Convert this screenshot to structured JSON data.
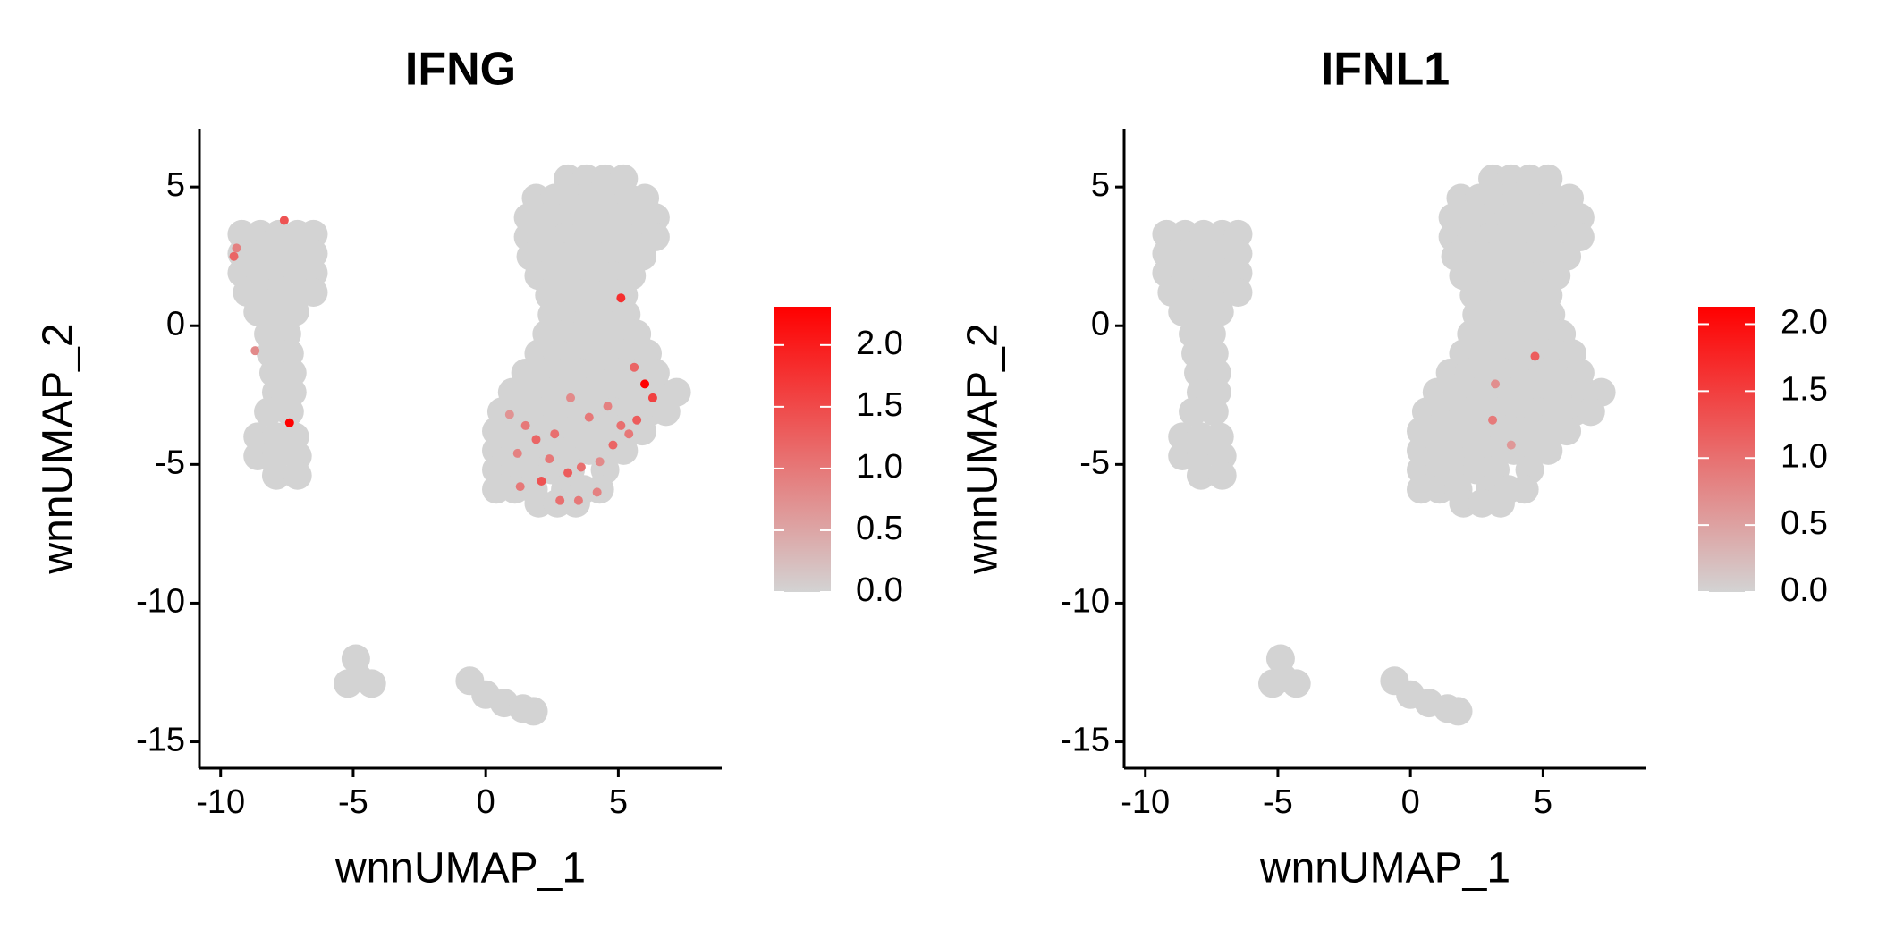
{
  "chart_data": [
    {
      "type": "scatter",
      "title": "IFNG",
      "x_label": "wnnUMAP_1",
      "y_label": "wnnUMAP_2",
      "xlim": [
        -10.8,
        8.9
      ],
      "ylim": [
        -15.95,
        7.1
      ],
      "xticks": [
        -10,
        -5,
        0,
        5
      ],
      "yticks": [
        -15,
        -10,
        -5,
        0,
        5
      ],
      "low_color": "#d3d3d3",
      "high_color": "#ff0000",
      "clim": [
        0,
        2.31
      ],
      "cticks": [
        {
          "value": 0,
          "label": "0.0"
        },
        {
          "value": 0.5,
          "label": "0.5"
        },
        {
          "value": 1,
          "label": "1.0"
        },
        {
          "value": 1.5,
          "label": "1.5"
        },
        {
          "value": 2,
          "label": "2.0"
        }
      ],
      "x": [
        -9.2,
        -8.5,
        -7.8,
        -7.1,
        -6.5,
        -9.2,
        -8.5,
        -7.8,
        -7.1,
        -6.5,
        -9.2,
        -8.5,
        -7.8,
        -7.1,
        -6.5,
        -9.0,
        -8.4,
        -7.7,
        -7.0,
        -6.5,
        -8.6,
        -7.9,
        -7.2,
        -8.2,
        -7.5,
        -8.1,
        -7.4,
        -8.0,
        -7.3,
        -7.9,
        -7.3,
        -8.2,
        -7.4,
        -8.6,
        -7.9,
        -7.2,
        -8.6,
        -7.9,
        -7.1,
        -7.9,
        -7.1,
        3.1,
        3.8,
        4.5,
        5.2,
        1.9,
        2.6,
        3.3,
        4.0,
        4.7,
        5.4,
        6.0,
        1.6,
        2.3,
        3.0,
        3.7,
        4.4,
        5.1,
        5.8,
        6.4,
        1.6,
        2.3,
        3.0,
        3.7,
        4.4,
        5.1,
        5.8,
        6.4,
        1.7,
        2.4,
        3.1,
        3.8,
        4.5,
        5.2,
        5.9,
        2.0,
        2.7,
        3.4,
        4.1,
        4.8,
        5.5,
        2.4,
        3.1,
        3.8,
        4.5,
        5.2,
        2.5,
        3.2,
        3.9,
        4.6,
        5.3,
        2.3,
        3.0,
        3.7,
        4.4,
        5.1,
        5.7,
        2.0,
        2.7,
        3.4,
        4.1,
        4.8,
        5.5,
        6.1,
        1.5,
        2.2,
        2.9,
        3.6,
        4.3,
        5.0,
        5.7,
        6.4,
        1.0,
        1.7,
        2.4,
        3.1,
        3.8,
        4.5,
        5.2,
        5.9,
        6.6,
        7.2,
        0.6,
        1.3,
        2.0,
        2.7,
        3.4,
        4.1,
        4.8,
        5.5,
        6.2,
        6.8,
        0.4,
        1.1,
        1.8,
        2.5,
        3.2,
        3.9,
        4.6,
        5.3,
        5.9,
        0.4,
        1.1,
        1.8,
        2.5,
        3.2,
        3.9,
        4.6,
        5.2,
        0.4,
        1.1,
        1.8,
        2.5,
        3.2,
        4.5,
        0.4,
        1.1,
        1.8,
        3.0,
        3.7,
        4.3,
        2.0,
        2.7,
        3.4,
        -4.9,
        -4.8,
        -4.3,
        -5.2,
        -0.6,
        0.0,
        0.7,
        1.4,
        1.8,
        -9.5,
        -9.4,
        -7.6,
        -7.4,
        -8.7,
        5.1,
        5.6,
        6.0,
        6.3,
        5.7,
        5.1,
        4.6,
        3.9,
        3.2,
        1.5,
        1.9,
        1.2,
        2.4,
        3.1,
        3.6,
        2.1,
        1.3,
        2.8,
        3.5,
        4.2,
        4.8,
        5.4,
        2.6,
        4.3,
        0.9
      ],
      "y": [
        3.3,
        3.3,
        3.3,
        3.3,
        3.3,
        2.6,
        2.6,
        2.6,
        2.6,
        2.6,
        1.9,
        1.9,
        1.9,
        1.9,
        1.9,
        1.2,
        1.2,
        1.2,
        1.2,
        1.2,
        0.5,
        0.5,
        0.5,
        -0.3,
        -0.3,
        -1.0,
        -1.0,
        -1.7,
        -1.7,
        -2.4,
        -2.4,
        -3.1,
        -3.1,
        -4.0,
        -4.0,
        -4.0,
        -4.7,
        -4.7,
        -4.7,
        -5.4,
        -5.4,
        5.3,
        5.3,
        5.3,
        5.3,
        4.6,
        4.6,
        4.6,
        4.6,
        4.6,
        4.6,
        4.6,
        3.9,
        3.9,
        3.9,
        3.9,
        3.9,
        3.9,
        3.9,
        3.9,
        3.2,
        3.2,
        3.2,
        3.2,
        3.2,
        3.2,
        3.2,
        3.2,
        2.5,
        2.5,
        2.5,
        2.5,
        2.5,
        2.5,
        2.5,
        1.8,
        1.8,
        1.8,
        1.8,
        1.8,
        1.8,
        1.1,
        1.1,
        1.1,
        1.1,
        1.1,
        0.4,
        0.4,
        0.4,
        0.4,
        0.4,
        -0.3,
        -0.3,
        -0.3,
        -0.3,
        -0.3,
        -0.3,
        -1.0,
        -1.0,
        -1.0,
        -1.0,
        -1.0,
        -1.0,
        -1.0,
        -1.7,
        -1.7,
        -1.7,
        -1.7,
        -1.7,
        -1.7,
        -1.7,
        -1.7,
        -2.4,
        -2.4,
        -2.4,
        -2.4,
        -2.4,
        -2.4,
        -2.4,
        -2.4,
        -2.4,
        -2.4,
        -3.1,
        -3.1,
        -3.1,
        -3.1,
        -3.1,
        -3.1,
        -3.1,
        -3.1,
        -3.1,
        -3.1,
        -3.8,
        -3.8,
        -3.8,
        -3.8,
        -3.8,
        -3.8,
        -3.8,
        -3.8,
        -3.8,
        -4.5,
        -4.5,
        -4.5,
        -4.5,
        -4.5,
        -4.5,
        -4.5,
        -4.5,
        -5.2,
        -5.2,
        -5.2,
        -5.2,
        -5.2,
        -5.2,
        -5.9,
        -5.9,
        -5.9,
        -5.9,
        -5.9,
        -5.9,
        -6.4,
        -6.4,
        -6.4,
        -12.0,
        -12.7,
        -12.9,
        -12.9,
        -12.8,
        -13.3,
        -13.6,
        -13.8,
        -13.9,
        2.5,
        2.8,
        3.8,
        -3.5,
        -0.9,
        1.0,
        -1.5,
        -2.1,
        -2.6,
        -3.4,
        -3.6,
        -2.9,
        -3.3,
        -2.6,
        -3.6,
        -4.1,
        -4.6,
        -4.8,
        -5.3,
        -5.1,
        -5.6,
        -5.8,
        -6.3,
        -6.3,
        -6.0,
        -4.3,
        -3.9,
        -3.9,
        -4.9,
        -3.2
      ],
      "values": [
        0,
        0,
        0,
        0,
        0,
        0,
        0,
        0,
        0,
        0,
        0,
        0,
        0,
        0,
        0,
        0,
        0,
        0,
        0,
        0,
        0,
        0,
        0,
        0,
        0,
        0,
        0,
        0,
        0,
        0,
        0,
        0,
        0,
        0,
        0,
        0,
        0,
        0,
        0,
        0,
        0,
        0,
        0,
        0,
        0,
        0,
        0,
        0,
        0,
        0,
        0,
        0,
        0,
        0,
        0,
        0,
        0,
        0,
        0,
        0,
        0,
        0,
        0,
        0,
        0,
        0,
        0,
        0,
        0,
        0,
        0,
        0,
        0,
        0,
        0,
        0,
        0,
        0,
        0,
        0,
        0,
        0,
        0,
        0,
        0,
        0,
        0,
        0,
        0,
        0,
        0,
        0,
        0,
        0,
        0,
        0,
        0,
        0,
        0,
        0,
        0,
        0,
        0,
        0,
        0,
        0,
        0,
        0,
        0,
        0,
        0,
        0,
        0,
        0,
        0,
        0,
        0,
        0,
        0,
        0,
        0,
        0,
        0,
        0,
        0,
        0,
        0,
        0,
        0,
        0,
        0,
        0,
        0,
        0,
        0,
        0,
        0,
        0,
        0,
        0,
        0,
        0,
        0,
        0,
        0,
        0,
        0,
        0,
        0,
        0,
        0,
        0,
        0,
        0,
        0,
        0,
        0,
        0,
        0,
        0,
        0,
        0,
        0,
        0,
        0,
        0,
        0,
        0,
        0,
        0,
        0,
        0,
        0,
        1.2,
        0.9,
        1.4,
        2.3,
        0.8,
        1.8,
        1.2,
        2.3,
        1.6,
        1.3,
        1.1,
        0.9,
        1.0,
        0.8,
        1.0,
        1.2,
        0.9,
        1.0,
        1.3,
        1.1,
        1.4,
        1.0,
        1.1,
        1.0,
        0.9,
        1.2,
        1.0,
        1.1,
        0.8,
        0.7
      ]
    },
    {
      "type": "scatter",
      "title": "IFNL1",
      "x_label": "wnnUMAP_1",
      "y_label": "wnnUMAP_2",
      "xlim": [
        -10.8,
        8.9
      ],
      "ylim": [
        -15.95,
        7.1
      ],
      "xticks": [
        -10,
        -5,
        0,
        5
      ],
      "yticks": [
        -15,
        -10,
        -5,
        0,
        5
      ],
      "low_color": "#d3d3d3",
      "high_color": "#ff0000",
      "clim": [
        0,
        2.13
      ],
      "cticks": [
        {
          "value": 0,
          "label": "0.0"
        },
        {
          "value": 0.5,
          "label": "0.5"
        },
        {
          "value": 1,
          "label": "1.0"
        },
        {
          "value": 1.5,
          "label": "1.5"
        },
        {
          "value": 2,
          "label": "2.0"
        }
      ],
      "x": [
        -9.2,
        -8.5,
        -7.8,
        -7.1,
        -6.5,
        -9.2,
        -8.5,
        -7.8,
        -7.1,
        -6.5,
        -9.2,
        -8.5,
        -7.8,
        -7.1,
        -6.5,
        -9.0,
        -8.4,
        -7.7,
        -7.0,
        -6.5,
        -8.6,
        -7.9,
        -7.2,
        -8.2,
        -7.5,
        -8.1,
        -7.4,
        -8.0,
        -7.3,
        -7.9,
        -7.3,
        -8.2,
        -7.4,
        -8.6,
        -7.9,
        -7.2,
        -8.6,
        -7.9,
        -7.1,
        -7.9,
        -7.1,
        3.1,
        3.8,
        4.5,
        5.2,
        1.9,
        2.6,
        3.3,
        4.0,
        4.7,
        5.4,
        6.0,
        1.6,
        2.3,
        3.0,
        3.7,
        4.4,
        5.1,
        5.8,
        6.4,
        1.6,
        2.3,
        3.0,
        3.7,
        4.4,
        5.1,
        5.8,
        6.4,
        1.7,
        2.4,
        3.1,
        3.8,
        4.5,
        5.2,
        5.9,
        2.0,
        2.7,
        3.4,
        4.1,
        4.8,
        5.5,
        2.4,
        3.1,
        3.8,
        4.5,
        5.2,
        2.5,
        3.2,
        3.9,
        4.6,
        5.3,
        2.3,
        3.0,
        3.7,
        4.4,
        5.1,
        5.7,
        2.0,
        2.7,
        3.4,
        4.1,
        4.8,
        5.5,
        6.1,
        1.5,
        2.2,
        2.9,
        3.6,
        4.3,
        5.0,
        5.7,
        6.4,
        1.0,
        1.7,
        2.4,
        3.1,
        3.8,
        4.5,
        5.2,
        5.9,
        6.6,
        7.2,
        0.6,
        1.3,
        2.0,
        2.7,
        3.4,
        4.1,
        4.8,
        5.5,
        6.2,
        6.8,
        0.4,
        1.1,
        1.8,
        2.5,
        3.2,
        3.9,
        4.6,
        5.3,
        5.9,
        0.4,
        1.1,
        1.8,
        2.5,
        3.2,
        3.9,
        4.6,
        5.2,
        0.4,
        1.1,
        1.8,
        2.5,
        3.2,
        4.5,
        0.4,
        1.1,
        1.8,
        3.0,
        3.7,
        4.3,
        2.0,
        2.7,
        3.4,
        -4.9,
        -4.8,
        -4.3,
        -5.2,
        -0.6,
        0.0,
        0.7,
        1.4,
        1.8,
        4.7,
        3.1,
        3.8,
        3.2
      ],
      "y": [
        3.3,
        3.3,
        3.3,
        3.3,
        3.3,
        2.6,
        2.6,
        2.6,
        2.6,
        2.6,
        1.9,
        1.9,
        1.9,
        1.9,
        1.9,
        1.2,
        1.2,
        1.2,
        1.2,
        1.2,
        0.5,
        0.5,
        0.5,
        -0.3,
        -0.3,
        -1.0,
        -1.0,
        -1.7,
        -1.7,
        -2.4,
        -2.4,
        -3.1,
        -3.1,
        -4.0,
        -4.0,
        -4.0,
        -4.7,
        -4.7,
        -4.7,
        -5.4,
        -5.4,
        5.3,
        5.3,
        5.3,
        5.3,
        4.6,
        4.6,
        4.6,
        4.6,
        4.6,
        4.6,
        4.6,
        3.9,
        3.9,
        3.9,
        3.9,
        3.9,
        3.9,
        3.9,
        3.9,
        3.2,
        3.2,
        3.2,
        3.2,
        3.2,
        3.2,
        3.2,
        3.2,
        2.5,
        2.5,
        2.5,
        2.5,
        2.5,
        2.5,
        2.5,
        1.8,
        1.8,
        1.8,
        1.8,
        1.8,
        1.8,
        1.1,
        1.1,
        1.1,
        1.1,
        1.1,
        0.4,
        0.4,
        0.4,
        0.4,
        0.4,
        -0.3,
        -0.3,
        -0.3,
        -0.3,
        -0.3,
        -0.3,
        -1.0,
        -1.0,
        -1.0,
        -1.0,
        -1.0,
        -1.0,
        -1.0,
        -1.7,
        -1.7,
        -1.7,
        -1.7,
        -1.7,
        -1.7,
        -1.7,
        -1.7,
        -2.4,
        -2.4,
        -2.4,
        -2.4,
        -2.4,
        -2.4,
        -2.4,
        -2.4,
        -2.4,
        -2.4,
        -3.1,
        -3.1,
        -3.1,
        -3.1,
        -3.1,
        -3.1,
        -3.1,
        -3.1,
        -3.1,
        -3.1,
        -3.8,
        -3.8,
        -3.8,
        -3.8,
        -3.8,
        -3.8,
        -3.8,
        -3.8,
        -3.8,
        -4.5,
        -4.5,
        -4.5,
        -4.5,
        -4.5,
        -4.5,
        -4.5,
        -4.5,
        -5.2,
        -5.2,
        -5.2,
        -5.2,
        -5.2,
        -5.2,
        -5.9,
        -5.9,
        -5.9,
        -5.9,
        -5.9,
        -5.9,
        -6.4,
        -6.4,
        -6.4,
        -12.0,
        -12.7,
        -12.9,
        -12.9,
        -12.8,
        -13.3,
        -13.6,
        -13.8,
        -13.9,
        -1.1,
        -3.4,
        -4.3,
        -2.1
      ],
      "values": [
        0,
        0,
        0,
        0,
        0,
        0,
        0,
        0,
        0,
        0,
        0,
        0,
        0,
        0,
        0,
        0,
        0,
        0,
        0,
        0,
        0,
        0,
        0,
        0,
        0,
        0,
        0,
        0,
        0,
        0,
        0,
        0,
        0,
        0,
        0,
        0,
        0,
        0,
        0,
        0,
        0,
        0,
        0,
        0,
        0,
        0,
        0,
        0,
        0,
        0,
        0,
        0,
        0,
        0,
        0,
        0,
        0,
        0,
        0,
        0,
        0,
        0,
        0,
        0,
        0,
        0,
        0,
        0,
        0,
        0,
        0,
        0,
        0,
        0,
        0,
        0,
        0,
        0,
        0,
        0,
        0,
        0,
        0,
        0,
        0,
        0,
        0,
        0,
        0,
        0,
        0,
        0,
        0,
        0,
        0,
        0,
        0,
        0,
        0,
        0,
        0,
        0,
        0,
        0,
        0,
        0,
        0,
        0,
        0,
        0,
        0,
        0,
        0,
        0,
        0,
        0,
        0,
        0,
        0,
        0,
        0,
        0,
        0,
        0,
        0,
        0,
        0,
        0,
        0,
        0,
        0,
        0,
        0,
        0,
        0,
        0,
        0,
        0,
        0,
        0,
        0,
        0,
        0,
        0,
        0,
        0,
        0,
        0,
        0,
        0,
        0,
        0,
        0,
        0,
        0,
        0,
        0,
        0,
        0,
        0,
        0,
        0,
        0,
        0,
        0,
        0,
        0,
        0,
        0,
        0,
        0,
        0,
        0,
        1.2,
        0.9,
        0.6,
        0.7
      ]
    }
  ]
}
